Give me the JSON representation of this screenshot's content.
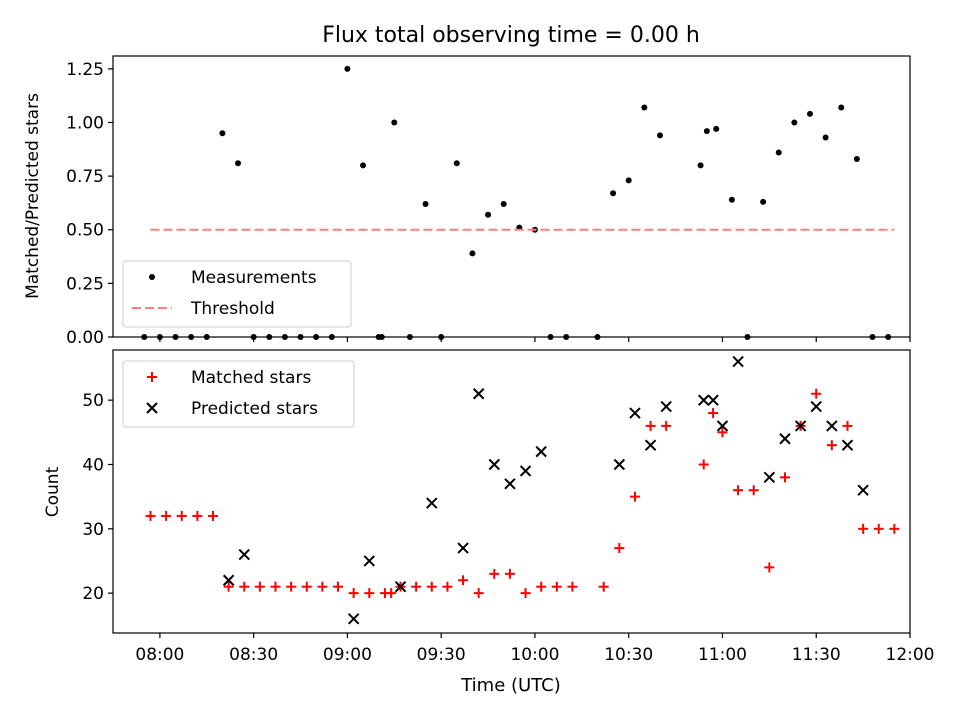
{
  "figure": {
    "title": "Flux total observing time = 0.00 h",
    "xlabel": "Time (UTC)"
  },
  "colors": {
    "measurement": "#000000",
    "threshold": "#ff7f7f",
    "matched": "#ff0000",
    "predicted": "#000000"
  },
  "chart_data": [
    {
      "type": "scatter",
      "name": "top-panel",
      "ylabel": "Matched/Predicted stars",
      "xlim": [
        "07:45",
        "12:00"
      ],
      "ylim": [
        0,
        1.31
      ],
      "x_ticks": [
        "08:00",
        "08:30",
        "09:00",
        "09:30",
        "10:00",
        "10:30",
        "11:00",
        "11:30",
        "12:00"
      ],
      "y_ticks": [
        0.0,
        0.25,
        0.5,
        0.75,
        1.0,
        1.25
      ],
      "y_tick_labels": [
        "0.00",
        "0.25",
        "0.50",
        "0.75",
        "1.00",
        "1.25"
      ],
      "legend": {
        "placement": "lower-left",
        "entries": [
          "Measurements",
          "Threshold"
        ]
      },
      "series": [
        {
          "name": "Measurements",
          "marker": "dot",
          "points": [
            [
              "07:55",
              0
            ],
            [
              "08:00",
              0
            ],
            [
              "08:05",
              0
            ],
            [
              "08:10",
              0
            ],
            [
              "08:15",
              0
            ],
            [
              "08:20",
              0.95
            ],
            [
              "08:25",
              0.81
            ],
            [
              "08:30",
              0
            ],
            [
              "08:35",
              0
            ],
            [
              "08:40",
              0
            ],
            [
              "08:45",
              0
            ],
            [
              "08:50",
              0
            ],
            [
              "08:55",
              0
            ],
            [
              "09:00",
              1.25
            ],
            [
              "09:05",
              0.8
            ],
            [
              "09:10",
              0
            ],
            [
              "09:11",
              0
            ],
            [
              "09:15",
              1.0
            ],
            [
              "09:20",
              0
            ],
            [
              "09:25",
              0.62
            ],
            [
              "09:30",
              0
            ],
            [
              "09:35",
              0.81
            ],
            [
              "09:40",
              0.39
            ],
            [
              "09:45",
              0.57
            ],
            [
              "09:50",
              0.62
            ],
            [
              "09:55",
              0.51
            ],
            [
              "10:00",
              0.5
            ],
            [
              "10:05",
              0
            ],
            [
              "10:10",
              0
            ],
            [
              "10:20",
              0
            ],
            [
              "10:25",
              0.67
            ],
            [
              "10:30",
              0.73
            ],
            [
              "10:35",
              1.07
            ],
            [
              "10:40",
              0.94
            ],
            [
              "10:53",
              0.8
            ],
            [
              "10:55",
              0.96
            ],
            [
              "10:58",
              0.97
            ],
            [
              "11:03",
              0.64
            ],
            [
              "11:08",
              0
            ],
            [
              "11:13",
              0.63
            ],
            [
              "11:18",
              0.86
            ],
            [
              "11:23",
              1.0
            ],
            [
              "11:28",
              1.04
            ],
            [
              "11:33",
              0.93
            ],
            [
              "11:38",
              1.07
            ],
            [
              "11:43",
              0.83
            ],
            [
              "11:48",
              0
            ],
            [
              "11:53",
              0
            ]
          ]
        },
        {
          "name": "Threshold",
          "style": "dashed",
          "points": [
            [
              "07:57",
              0.5
            ],
            [
              "11:55",
              0.5
            ]
          ]
        }
      ]
    },
    {
      "type": "scatter",
      "name": "bottom-panel",
      "ylabel": "Count",
      "xlim": [
        "07:45",
        "12:00"
      ],
      "ylim": [
        13.8,
        57.8
      ],
      "x_ticks": [
        "08:00",
        "08:30",
        "09:00",
        "09:30",
        "10:00",
        "10:30",
        "11:00",
        "11:30",
        "12:00"
      ],
      "y_ticks": [
        20,
        30,
        40,
        50
      ],
      "legend": {
        "placement": "top-left",
        "entries": [
          "Matched stars",
          "Predicted stars"
        ]
      },
      "series": [
        {
          "name": "Matched stars",
          "marker": "plus",
          "points": [
            [
              "07:57",
              32
            ],
            [
              "08:02",
              32
            ],
            [
              "08:07",
              32
            ],
            [
              "08:12",
              32
            ],
            [
              "08:17",
              32
            ],
            [
              "08:22",
              21
            ],
            [
              "08:27",
              21
            ],
            [
              "08:32",
              21
            ],
            [
              "08:37",
              21
            ],
            [
              "08:42",
              21
            ],
            [
              "08:47",
              21
            ],
            [
              "08:52",
              21
            ],
            [
              "08:57",
              21
            ],
            [
              "09:02",
              20
            ],
            [
              "09:07",
              20
            ],
            [
              "09:12",
              20
            ],
            [
              "09:14",
              20
            ],
            [
              "09:17",
              21
            ],
            [
              "09:22",
              21
            ],
            [
              "09:27",
              21
            ],
            [
              "09:32",
              21
            ],
            [
              "09:37",
              22
            ],
            [
              "09:42",
              20
            ],
            [
              "09:47",
              23
            ],
            [
              "09:52",
              23
            ],
            [
              "09:57",
              20
            ],
            [
              "10:02",
              21
            ],
            [
              "10:07",
              21
            ],
            [
              "10:12",
              21
            ],
            [
              "10:22",
              21
            ],
            [
              "10:27",
              27
            ],
            [
              "10:32",
              35
            ],
            [
              "10:37",
              46
            ],
            [
              "10:42",
              46
            ],
            [
              "10:54",
              40
            ],
            [
              "10:57",
              48
            ],
            [
              "11:00",
              45
            ],
            [
              "11:05",
              36
            ],
            [
              "11:10",
              36
            ],
            [
              "11:15",
              24
            ],
            [
              "11:20",
              38
            ],
            [
              "11:25",
              46
            ],
            [
              "11:30",
              51
            ],
            [
              "11:35",
              43
            ],
            [
              "11:40",
              46
            ],
            [
              "11:45",
              30
            ],
            [
              "11:50",
              30
            ],
            [
              "11:55",
              30
            ]
          ]
        },
        {
          "name": "Predicted stars",
          "marker": "x",
          "points": [
            [
              "08:22",
              22
            ],
            [
              "08:27",
              26
            ],
            [
              "09:02",
              16
            ],
            [
              "09:07",
              25
            ],
            [
              "09:17",
              21
            ],
            [
              "09:27",
              34
            ],
            [
              "09:37",
              27
            ],
            [
              "09:42",
              51
            ],
            [
              "09:47",
              40
            ],
            [
              "09:52",
              37
            ],
            [
              "09:57",
              39
            ],
            [
              "10:02",
              42
            ],
            [
              "10:27",
              40
            ],
            [
              "10:32",
              48
            ],
            [
              "10:37",
              43
            ],
            [
              "10:42",
              49
            ],
            [
              "10:54",
              50
            ],
            [
              "10:57",
              50
            ],
            [
              "11:00",
              46
            ],
            [
              "11:05",
              56
            ],
            [
              "11:15",
              38
            ],
            [
              "11:20",
              44
            ],
            [
              "11:25",
              46
            ],
            [
              "11:30",
              49
            ],
            [
              "11:35",
              46
            ],
            [
              "11:40",
              43
            ],
            [
              "11:45",
              36
            ]
          ]
        }
      ]
    }
  ]
}
